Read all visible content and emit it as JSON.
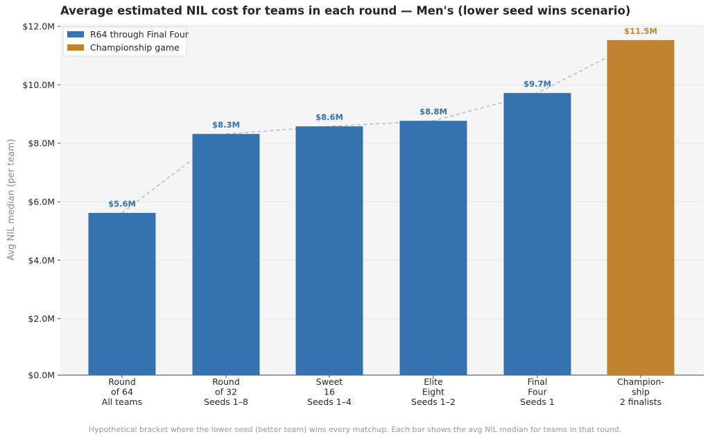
{
  "chart_data": {
    "type": "bar",
    "title": "Average estimated NIL cost for teams in each round — Men's (lower seed wins scenario)",
    "ylabel": "Avg NIL median (per team)",
    "xlabel": "",
    "ylim": [
      0,
      12
    ],
    "yticks": [
      0,
      2,
      4,
      6,
      8,
      10,
      12
    ],
    "ytick_labels": [
      "$0.0M",
      "$2.0M",
      "$4.0M",
      "$6.0M",
      "$8.0M",
      "$10.0M",
      "$12.0M"
    ],
    "grid": true,
    "legend_position": "top-left",
    "categories": [
      {
        "lines": [
          "Round",
          "of 64",
          "All teams"
        ]
      },
      {
        "lines": [
          "Round",
          "of 32",
          "Seeds 1–8"
        ]
      },
      {
        "lines": [
          "Sweet",
          "16",
          "Seeds 1–4"
        ]
      },
      {
        "lines": [
          "Elite",
          "Eight",
          "Seeds 1–2"
        ]
      },
      {
        "lines": [
          "Final",
          "Four",
          "Seeds 1"
        ]
      },
      {
        "lines": [
          "Champion-",
          "ship",
          "2 finalists"
        ]
      }
    ],
    "values": [
      5.62,
      8.32,
      8.58,
      8.77,
      9.72,
      11.53
    ],
    "value_labels": [
      "$5.6M",
      "$8.3M",
      "$8.6M",
      "$8.8M",
      "$9.7M",
      "$11.5M"
    ],
    "bar_groups": [
      0,
      0,
      0,
      0,
      0,
      1
    ],
    "series": [
      {
        "name": "R64 through Final Four",
        "color": "#3572b0"
      },
      {
        "name": "Championship game",
        "color": "#c08430"
      }
    ],
    "trend_line_color": "#a9b8c8",
    "footnote": "Hypothetical bracket where the lower seed (better team) wins every matchup. Each bar shows the avg NIL median for teams in that round."
  }
}
